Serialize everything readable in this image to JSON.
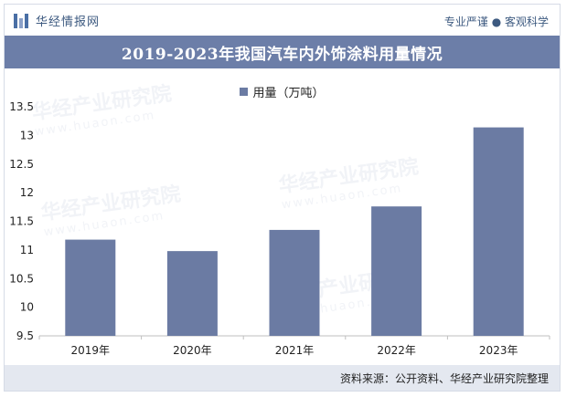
{
  "header": {
    "logo_text": "华经情报网",
    "tagline": "专业严谨 ● 客观科学"
  },
  "watermark": {
    "text": "华经产业研究院",
    "url": "www.huaon.com"
  },
  "source": "资料来源：公开资料、华经产业研究院整理",
  "colors": {
    "bar": "#6b7ba3",
    "title_bg": "#6c7ea8",
    "footer_bg": "#e4e8f0"
  },
  "chart_data": {
    "type": "bar",
    "title": "2019-2023年我国汽车内外饰涂料用量情况",
    "categories": [
      "2019年",
      "2020年",
      "2021年",
      "2022年",
      "2023年"
    ],
    "series": [
      {
        "name": "用量（万吨）",
        "values": [
          11.18,
          10.98,
          11.35,
          11.76,
          13.14
        ]
      }
    ],
    "ylim": [
      9.5,
      13.5
    ],
    "yticks": [
      "9.5",
      "10",
      "10.5",
      "11",
      "11.5",
      "12",
      "12.5",
      "13",
      "13.5"
    ],
    "grid": false,
    "legend": "top-center"
  }
}
